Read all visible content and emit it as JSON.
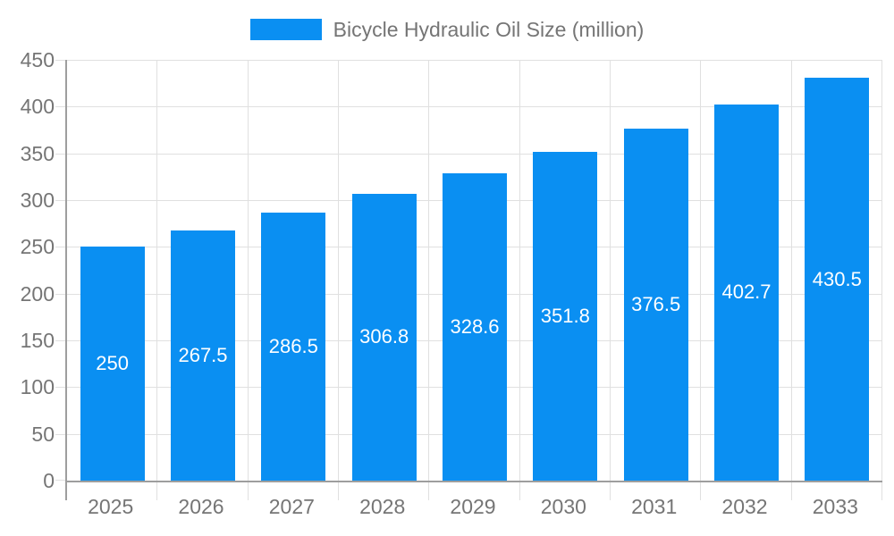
{
  "legend": {
    "label": "Bicycle Hydraulic Oil Size (million)"
  },
  "chart_data": {
    "type": "bar",
    "title": "Bicycle Hydraulic Oil Size (million)",
    "categories": [
      "2025",
      "2026",
      "2027",
      "2028",
      "2029",
      "2030",
      "2031",
      "2032",
      "2033"
    ],
    "values": [
      250,
      267.5,
      286.5,
      306.8,
      328.6,
      351.8,
      376.5,
      402.7,
      430.5
    ],
    "value_labels": [
      "250",
      "267.5",
      "286.5",
      "306.8",
      "328.6",
      "351.8",
      "376.5",
      "402.7",
      "430.5"
    ],
    "xlabel": "",
    "ylabel": "",
    "ylim": [
      0,
      450
    ],
    "yticks": [
      0,
      50,
      100,
      150,
      200,
      250,
      300,
      350,
      400,
      450
    ],
    "grid": true,
    "legend_position": "top",
    "colors": {
      "bar": "#0a8ff2",
      "bar_label_text": "#ffffff",
      "axis_text": "#757575",
      "gridline": "#e0e0e0",
      "axis_line": "#9e9e9e",
      "background": "#ffffff"
    }
  }
}
